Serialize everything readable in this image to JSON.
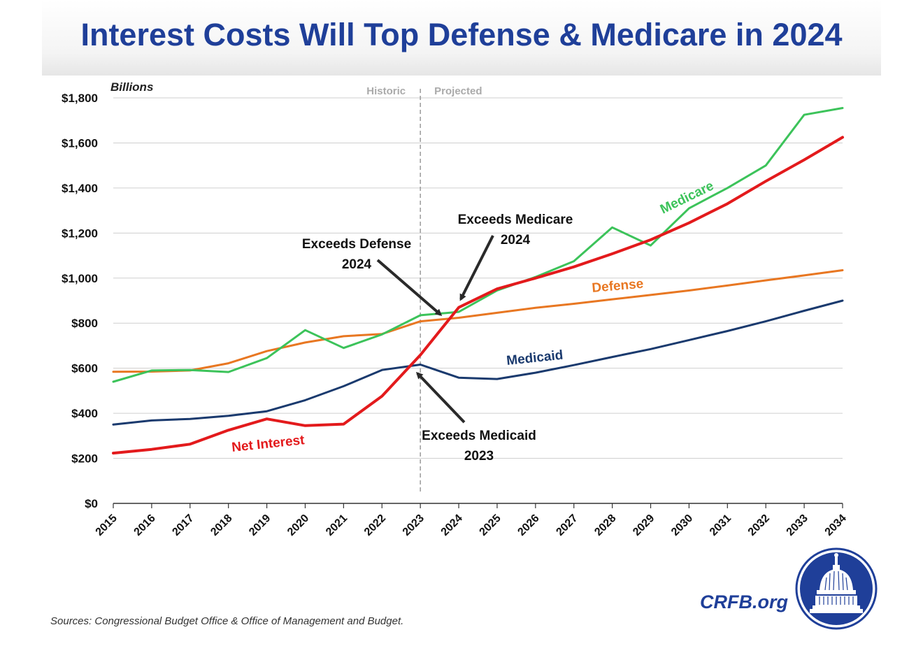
{
  "title": "Interest Costs Will Top Defense & Medicare in 2024",
  "source": "Sources: Congressional  Budget Office & Office of Management and Budget.",
  "brand": "CRFB.org",
  "colors": {
    "title": "#1f3f99",
    "net_interest": "#e31a1c",
    "medicare": "#3cc35a",
    "defense": "#e87722",
    "medicaid": "#1a3a6e",
    "annotation": "#2a2a2a"
  },
  "chart_data": {
    "type": "line",
    "ylabel": "Billions",
    "ylim": [
      0,
      1800
    ],
    "yticks": [
      0,
      200,
      400,
      600,
      800,
      1000,
      1200,
      1400,
      1600,
      1800
    ],
    "ytick_labels": [
      "$0",
      "$200",
      "$400",
      "$600",
      "$800",
      "$1,000",
      "$1,200",
      "$1,400",
      "$1,600",
      "$1,800"
    ],
    "x": [
      "2015",
      "2016",
      "2017",
      "2018",
      "2019",
      "2020",
      "2021",
      "2022",
      "2023",
      "2024",
      "2025",
      "2026",
      "2027",
      "2028",
      "2029",
      "2030",
      "2031",
      "2032",
      "2033",
      "2034"
    ],
    "divider_x": "2023",
    "divider_labels": {
      "left": "Historic",
      "right": "Projected"
    },
    "grid": true,
    "series": [
      {
        "name": "Net Interest",
        "key": "net_interest",
        "values": [
          223,
          240,
          263,
          325,
          375,
          345,
          352,
          476,
          659,
          870,
          952,
          1000,
          1050,
          1108,
          1170,
          1245,
          1330,
          1430,
          1525,
          1625
        ]
      },
      {
        "name": "Medicare",
        "key": "medicare",
        "values": [
          540,
          590,
          592,
          583,
          645,
          769,
          690,
          750,
          835,
          850,
          945,
          1005,
          1075,
          1225,
          1145,
          1310,
          1400,
          1500,
          1725,
          1755
        ]
      },
      {
        "name": "Defense",
        "key": "defense",
        "values": [
          584,
          585,
          590,
          622,
          676,
          714,
          742,
          752,
          808,
          824,
          846,
          868,
          886,
          906,
          925,
          945,
          967,
          990,
          1012,
          1035
        ]
      },
      {
        "name": "Medicaid",
        "key": "medicaid",
        "values": [
          350,
          368,
          375,
          389,
          409,
          458,
          520,
          592,
          616,
          558,
          552,
          580,
          614,
          650,
          685,
          725,
          765,
          808,
          855,
          900
        ]
      }
    ],
    "annotations": [
      {
        "text_lines": [
          "Exceeds Defense",
          "2024"
        ]
      },
      {
        "text_lines": [
          "Exceeds Medicare",
          "2024"
        ]
      },
      {
        "text_lines": [
          "Exceeds Medicaid",
          "2023"
        ]
      }
    ]
  }
}
